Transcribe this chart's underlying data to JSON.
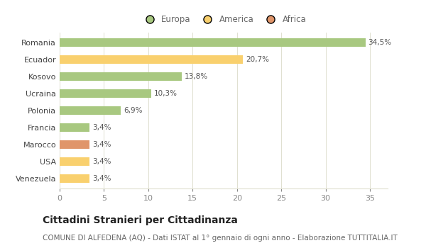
{
  "categories": [
    "Venezuela",
    "USA",
    "Marocco",
    "Francia",
    "Polonia",
    "Ucraina",
    "Kosovo",
    "Ecuador",
    "Romania"
  ],
  "values": [
    3.4,
    3.4,
    3.4,
    3.4,
    6.9,
    10.3,
    13.8,
    20.7,
    34.5
  ],
  "labels": [
    "3,4%",
    "3,4%",
    "3,4%",
    "3,4%",
    "6,9%",
    "10,3%",
    "13,8%",
    "20,7%",
    "34,5%"
  ],
  "colors": [
    "#f9d06e",
    "#f9d06e",
    "#e0956a",
    "#a8c880",
    "#a8c880",
    "#a8c880",
    "#a8c880",
    "#f9d06e",
    "#a8c880"
  ],
  "legend_labels": [
    "Europa",
    "America",
    "Africa"
  ],
  "legend_colors": [
    "#a8c880",
    "#f9d06e",
    "#e0956a"
  ],
  "xlim": [
    0,
    37
  ],
  "xticks": [
    0,
    5,
    10,
    15,
    20,
    25,
    30,
    35
  ],
  "title": "Cittadini Stranieri per Cittadinanza",
  "subtitle": "COMUNE DI ALFEDENA (AQ) - Dati ISTAT al 1° gennaio di ogni anno - Elaborazione TUTTITALIA.IT",
  "background_color": "#ffffff",
  "plot_bg_color": "#ffffff",
  "grid_color": "#e0e0d0",
  "bar_height": 0.5,
  "title_fontsize": 10,
  "subtitle_fontsize": 7.5,
  "tick_fontsize": 8,
  "label_fontsize": 7.5,
  "legend_fontsize": 8.5
}
